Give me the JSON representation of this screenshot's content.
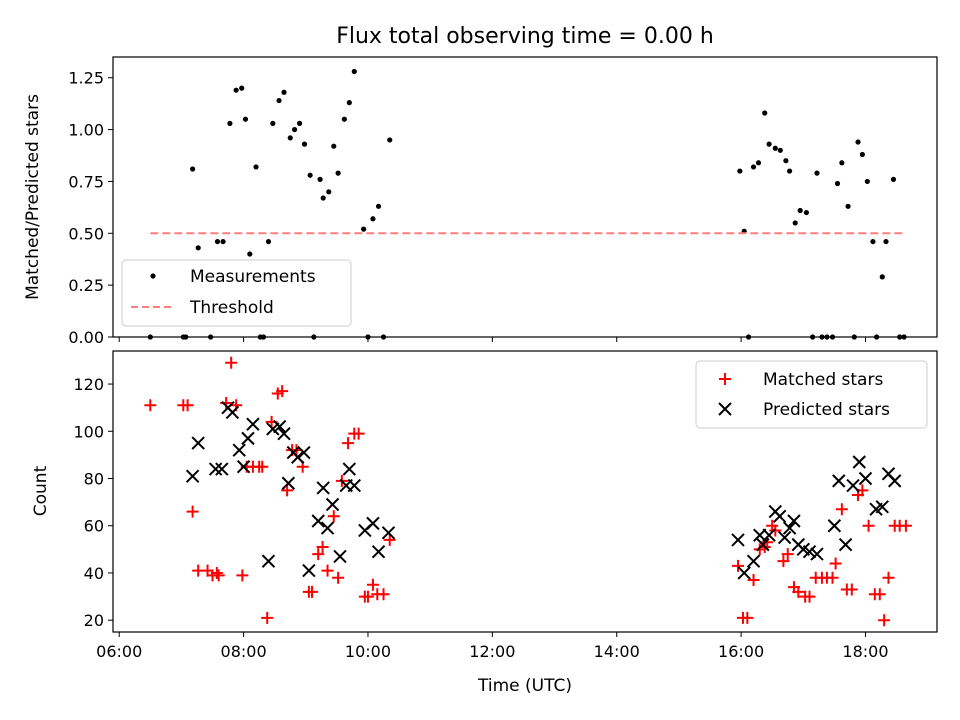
{
  "figure": {
    "title": "Flux total observing time = 0.00 h",
    "xlabel": "Time (UTC)",
    "xticks": [
      "06:00",
      "08:00",
      "10:00",
      "12:00",
      "14:00",
      "16:00",
      "18:00"
    ]
  },
  "chart_data": [
    {
      "type": "scatter",
      "title": "Flux total observing time = 0.00 h",
      "xlabel": "",
      "ylabel": "Matched/Predicted stars",
      "x_unit": "hours UTC",
      "xlim": [
        5.9,
        19.15
      ],
      "ylim": [
        0.0,
        1.35
      ],
      "yticks": [
        "0.00",
        "0.25",
        "0.50",
        "0.75",
        "1.00",
        "1.25"
      ],
      "legend_position": "lower-left",
      "series": [
        {
          "name": "Measurements",
          "marker": "dot",
          "color": "#000000",
          "points": [
            [
              6.5,
              0
            ],
            [
              7.03,
              0
            ],
            [
              7.07,
              0
            ],
            [
              7.18,
              0.81
            ],
            [
              7.27,
              0.43
            ],
            [
              7.47,
              0
            ],
            [
              7.58,
              0.46
            ],
            [
              7.67,
              0.46
            ],
            [
              7.78,
              1.03
            ],
            [
              7.88,
              1.19
            ],
            [
              7.97,
              1.2
            ],
            [
              8.03,
              1.05
            ],
            [
              8.1,
              0.4
            ],
            [
              8.2,
              0.82
            ],
            [
              8.27,
              0
            ],
            [
              8.32,
              0
            ],
            [
              8.4,
              0.46
            ],
            [
              8.47,
              1.03
            ],
            [
              8.57,
              1.14
            ],
            [
              8.65,
              1.18
            ],
            [
              8.75,
              0.96
            ],
            [
              8.82,
              1.0
            ],
            [
              8.9,
              1.03
            ],
            [
              8.98,
              0.93
            ],
            [
              9.07,
              0.78
            ],
            [
              9.13,
              0
            ],
            [
              9.23,
              0.76
            ],
            [
              9.28,
              0.67
            ],
            [
              9.37,
              0.7
            ],
            [
              9.45,
              0.92
            ],
            [
              9.52,
              0.79
            ],
            [
              9.62,
              1.05
            ],
            [
              9.7,
              1.13
            ],
            [
              9.78,
              1.28
            ],
            [
              9.93,
              0.52
            ],
            [
              10.0,
              0
            ],
            [
              10.08,
              0.57
            ],
            [
              10.17,
              0.63
            ],
            [
              10.25,
              0
            ],
            [
              10.35,
              0.95
            ],
            [
              15.98,
              0.8
            ],
            [
              16.05,
              0.51
            ],
            [
              16.12,
              0
            ],
            [
              16.2,
              0.82
            ],
            [
              16.28,
              0.84
            ],
            [
              16.38,
              1.08
            ],
            [
              16.45,
              0.93
            ],
            [
              16.55,
              0.91
            ],
            [
              16.63,
              0.9
            ],
            [
              16.72,
              0.85
            ],
            [
              16.78,
              0.8
            ],
            [
              16.87,
              0.55
            ],
            [
              16.95,
              0.61
            ],
            [
              17.05,
              0.6
            ],
            [
              17.15,
              0
            ],
            [
              17.22,
              0.79
            ],
            [
              17.3,
              0
            ],
            [
              17.38,
              0
            ],
            [
              17.47,
              0
            ],
            [
              17.55,
              0.74
            ],
            [
              17.62,
              0.84
            ],
            [
              17.72,
              0.63
            ],
            [
              17.82,
              0
            ],
            [
              17.88,
              0.94
            ],
            [
              17.95,
              0.88
            ],
            [
              18.03,
              0.75
            ],
            [
              18.12,
              0.46
            ],
            [
              18.18,
              0
            ],
            [
              18.27,
              0.29
            ],
            [
              18.33,
              0.46
            ],
            [
              18.45,
              0.76
            ],
            [
              18.55,
              0
            ],
            [
              18.62,
              0
            ]
          ]
        },
        {
          "name": "Threshold",
          "marker": "dashed-line",
          "color": "#ff7f7f",
          "points": [
            [
              6.5,
              0.5
            ],
            [
              18.62,
              0.5
            ]
          ]
        }
      ]
    },
    {
      "type": "scatter",
      "xlabel": "Time (UTC)",
      "ylabel": "Count",
      "x_unit": "hours UTC",
      "xlim": [
        5.9,
        19.15
      ],
      "ylim": [
        15,
        134
      ],
      "yticks": [
        "20",
        "40",
        "60",
        "80",
        "100",
        "120"
      ],
      "legend_position": "upper-right",
      "series": [
        {
          "name": "Matched stars",
          "marker": "plus",
          "color": "#ff0000",
          "points": [
            [
              6.5,
              111
            ],
            [
              7.03,
              111
            ],
            [
              7.1,
              111
            ],
            [
              7.18,
              66
            ],
            [
              7.27,
              41
            ],
            [
              7.42,
              41
            ],
            [
              7.5,
              39
            ],
            [
              7.57,
              40
            ],
            [
              7.6,
              39
            ],
            [
              7.72,
              112
            ],
            [
              7.8,
              129
            ],
            [
              7.88,
              111
            ],
            [
              7.98,
              39
            ],
            [
              8.05,
              85
            ],
            [
              8.15,
              85
            ],
            [
              8.25,
              85
            ],
            [
              8.3,
              85
            ],
            [
              8.38,
              21
            ],
            [
              8.45,
              104
            ],
            [
              8.55,
              116
            ],
            [
              8.62,
              117
            ],
            [
              8.7,
              75
            ],
            [
              8.78,
              92
            ],
            [
              8.85,
              92
            ],
            [
              8.95,
              85
            ],
            [
              9.05,
              32
            ],
            [
              9.1,
              32
            ],
            [
              9.2,
              48
            ],
            [
              9.27,
              51
            ],
            [
              9.35,
              41
            ],
            [
              9.45,
              64
            ],
            [
              9.52,
              38
            ],
            [
              9.58,
              79
            ],
            [
              9.68,
              95
            ],
            [
              9.78,
              99
            ],
            [
              9.85,
              99
            ],
            [
              9.95,
              30
            ],
            [
              10.0,
              30
            ],
            [
              10.08,
              35
            ],
            [
              10.15,
              31
            ],
            [
              10.25,
              31
            ],
            [
              10.35,
              54
            ],
            [
              15.95,
              43
            ],
            [
              16.03,
              21
            ],
            [
              16.1,
              21
            ],
            [
              16.2,
              37
            ],
            [
              16.3,
              50
            ],
            [
              16.38,
              51
            ],
            [
              16.42,
              53
            ],
            [
              16.5,
              60
            ],
            [
              16.55,
              58
            ],
            [
              16.68,
              45
            ],
            [
              16.75,
              48
            ],
            [
              16.85,
              34
            ],
            [
              16.92,
              32
            ],
            [
              17.03,
              30
            ],
            [
              17.1,
              30
            ],
            [
              17.2,
              38
            ],
            [
              17.3,
              38
            ],
            [
              17.38,
              38
            ],
            [
              17.47,
              38
            ],
            [
              17.52,
              44
            ],
            [
              17.62,
              67
            ],
            [
              17.7,
              33
            ],
            [
              17.78,
              33
            ],
            [
              17.88,
              73
            ],
            [
              17.95,
              75
            ],
            [
              18.05,
              60
            ],
            [
              18.15,
              31
            ],
            [
              18.23,
              31
            ],
            [
              18.3,
              20
            ],
            [
              18.37,
              38
            ],
            [
              18.47,
              60
            ],
            [
              18.55,
              60
            ],
            [
              18.65,
              60
            ]
          ]
        },
        {
          "name": "Predicted stars",
          "marker": "x",
          "color": "#000000",
          "points": [
            [
              7.18,
              81
            ],
            [
              7.27,
              95
            ],
            [
              7.55,
              84
            ],
            [
              7.65,
              84
            ],
            [
              7.75,
              110
            ],
            [
              7.82,
              108
            ],
            [
              7.93,
              92
            ],
            [
              8.0,
              85
            ],
            [
              8.07,
              97
            ],
            [
              8.15,
              103
            ],
            [
              8.4,
              45
            ],
            [
              8.47,
              101
            ],
            [
              8.58,
              102
            ],
            [
              8.65,
              99
            ],
            [
              8.72,
              78
            ],
            [
              8.8,
              91
            ],
            [
              8.87,
              89
            ],
            [
              8.97,
              91
            ],
            [
              9.05,
              41
            ],
            [
              9.2,
              62
            ],
            [
              9.28,
              76
            ],
            [
              9.35,
              59
            ],
            [
              9.43,
              69
            ],
            [
              9.55,
              47
            ],
            [
              9.65,
              77
            ],
            [
              9.7,
              84
            ],
            [
              9.78,
              77
            ],
            [
              9.95,
              58
            ],
            [
              10.08,
              61
            ],
            [
              10.17,
              49
            ],
            [
              10.33,
              57
            ],
            [
              15.95,
              54
            ],
            [
              16.05,
              40
            ],
            [
              16.2,
              45
            ],
            [
              16.3,
              56
            ],
            [
              16.35,
              52
            ],
            [
              16.45,
              56
            ],
            [
              16.55,
              66
            ],
            [
              16.62,
              64
            ],
            [
              16.7,
              55
            ],
            [
              16.78,
              59
            ],
            [
              16.85,
              62
            ],
            [
              16.92,
              52
            ],
            [
              17.0,
              50
            ],
            [
              17.1,
              49
            ],
            [
              17.22,
              48
            ],
            [
              17.5,
              60
            ],
            [
              17.57,
              79
            ],
            [
              17.68,
              52
            ],
            [
              17.8,
              77
            ],
            [
              17.9,
              87
            ],
            [
              18.0,
              80
            ],
            [
              18.17,
              67
            ],
            [
              18.27,
              68
            ],
            [
              18.37,
              82
            ],
            [
              18.47,
              79
            ]
          ]
        }
      ]
    }
  ]
}
